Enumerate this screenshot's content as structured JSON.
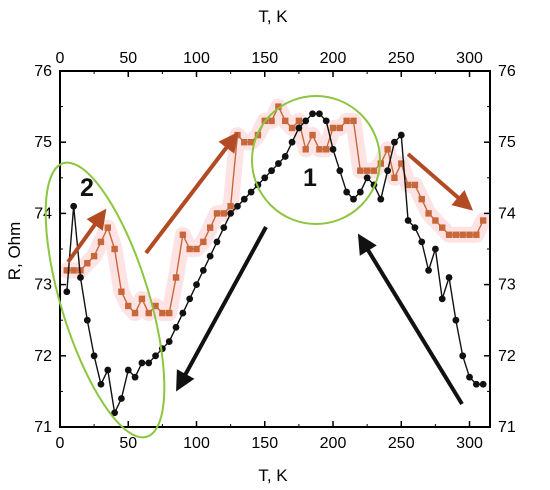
{
  "chart_data": {
    "type": "line",
    "title": "",
    "xlabel": "T, K",
    "ylabel": "R, Ohm",
    "xlim": [
      0,
      315
    ],
    "ylim": [
      71,
      76
    ],
    "xticks": [
      0,
      50,
      100,
      150,
      200,
      250,
      300
    ],
    "yticks": [
      71,
      72,
      73,
      74,
      75,
      76
    ],
    "xtick_labels": [
      "0",
      "50",
      "100",
      "150",
      "200",
      "250",
      "300"
    ],
    "ytick_labels": [
      "71",
      "72",
      "73",
      "74",
      "75",
      "76"
    ],
    "grid": false,
    "legend": "none",
    "series": [
      {
        "color": "#c8683a",
        "marker": "square",
        "x": [
          5,
          10,
          15,
          20,
          25,
          30,
          35,
          40,
          45,
          50,
          55,
          60,
          65,
          70,
          75,
          80,
          85,
          90,
          95,
          100,
          105,
          110,
          115,
          120,
          125,
          130,
          135,
          140,
          145,
          150,
          155,
          160,
          165,
          170,
          175,
          180,
          185,
          190,
          195,
          200,
          205,
          210,
          215,
          220,
          225,
          230,
          235,
          240,
          245,
          250,
          255,
          260,
          265,
          270,
          275,
          280,
          285,
          290,
          295,
          300,
          305,
          310
        ],
        "values": [
          73.2,
          73.2,
          73.2,
          73.3,
          73.4,
          73.6,
          73.8,
          73.5,
          72.9,
          72.7,
          72.6,
          72.8,
          72.6,
          72.7,
          72.6,
          72.6,
          73.1,
          73.7,
          73.5,
          73.5,
          73.6,
          73.8,
          74.0,
          74.0,
          74.1,
          75.1,
          75.0,
          75.0,
          75.1,
          75.3,
          75.3,
          75.5,
          75.3,
          75.2,
          75.3,
          74.9,
          75.1,
          74.9,
          74.9,
          75.2,
          75.2,
          75.3,
          75.3,
          74.6,
          74.6,
          74.6,
          74.7,
          74.9,
          74.5,
          74.7,
          74.4,
          74.4,
          74.2,
          74.0,
          73.9,
          73.8,
          73.7,
          73.7,
          73.7,
          73.7,
          73.7,
          73.9
        ]
      },
      {
        "color": "#111111",
        "marker": "circle",
        "x": [
          5,
          10,
          15,
          20,
          25,
          30,
          35,
          40,
          45,
          50,
          55,
          60,
          65,
          70,
          75,
          80,
          85,
          90,
          95,
          100,
          105,
          110,
          115,
          120,
          125,
          130,
          135,
          140,
          145,
          150,
          155,
          160,
          165,
          170,
          175,
          180,
          185,
          190,
          195,
          200,
          205,
          210,
          215,
          220,
          225,
          230,
          235,
          240,
          245,
          250,
          255,
          260,
          265,
          270,
          275,
          280,
          285,
          290,
          295,
          300,
          305,
          310
        ],
        "values": [
          72.9,
          74.1,
          73.1,
          72.5,
          72.0,
          71.6,
          71.8,
          71.2,
          71.4,
          71.8,
          71.7,
          71.9,
          71.9,
          72.0,
          72.1,
          72.2,
          72.4,
          72.6,
          72.8,
          73.0,
          73.2,
          73.4,
          73.6,
          73.8,
          74.0,
          74.1,
          74.2,
          74.3,
          74.4,
          74.5,
          74.6,
          74.7,
          74.8,
          75.0,
          75.2,
          75.3,
          75.4,
          75.4,
          75.3,
          74.9,
          74.6,
          74.3,
          74.2,
          74.3,
          74.5,
          74.4,
          74.2,
          74.6,
          75.0,
          75.1,
          73.9,
          73.8,
          73.6,
          73.2,
          73.5,
          72.8,
          73.1,
          72.5,
          72.0,
          71.7,
          71.6,
          71.6
        ]
      }
    ],
    "annotations": [
      {
        "text": "1",
        "x": 178,
        "y": 74.3
      },
      {
        "text": "2",
        "x": 18,
        "y": 74.2
      }
    ]
  },
  "colors": {
    "ellipse": "#8cc63f",
    "arrow_brown": "#b24a24",
    "arrow_black": "#111111",
    "highlight": "#fde3e3"
  }
}
